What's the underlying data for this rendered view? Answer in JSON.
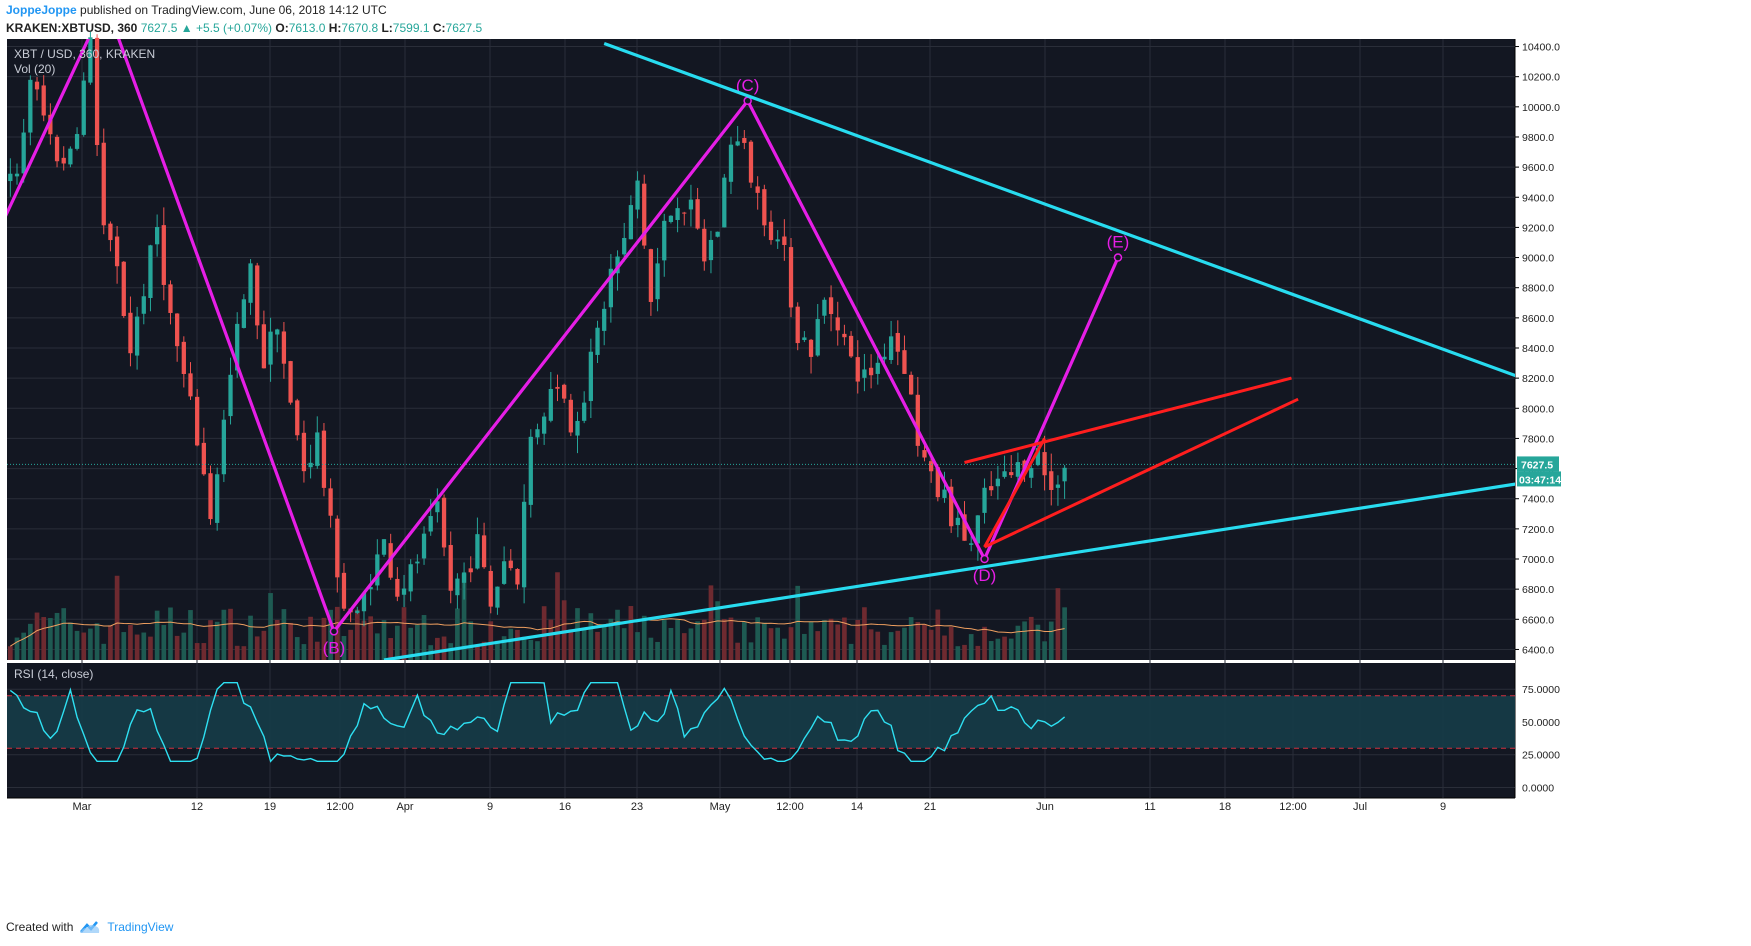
{
  "header": {
    "author": "JoppeJoppe",
    "published": "published on TradingView.com, June 06, 2018 14:12 UTC",
    "symbol": "KRAKEN:XBTUSD, 360",
    "last": "7627.5",
    "change": "▲ +5.5 (+0.07%)",
    "o_label": "O:",
    "o": "7613.0",
    "h_label": "H:",
    "h": "7670.8",
    "l_label": "L:",
    "l": "7599.1",
    "c_label": "C:",
    "c": "7627.5"
  },
  "footer": {
    "created_with": "Created with",
    "brand": "TradingView",
    "logo_icon": "tradingview-cloud-icon"
  },
  "colors": {
    "background": "#131722",
    "grid": "#2a2e39",
    "up": "#26a69a",
    "down": "#ef5350",
    "magenta": "#e61ee6",
    "cyan": "#28dcf0",
    "red": "#ff1e1e",
    "rsi": "#2ee0f2",
    "vol_ma": "#f0a060"
  },
  "chart_data": [
    {
      "type": "candlestick",
      "title": "XBT / USD, 360, KRAKEN",
      "volume_label": "Vol (20)",
      "x_ticks": [
        "Mar",
        "12",
        "19",
        "12:00",
        "Apr",
        "9",
        "16",
        "23",
        "May",
        "12:00",
        "14",
        "21",
        "Jun",
        "11",
        "18",
        "12:00",
        "Jul",
        "9"
      ],
      "y_ticks": [
        6400,
        6600,
        6800,
        7000,
        7200,
        7400,
        7600,
        7800,
        8000,
        8200,
        8400,
        8600,
        8800,
        9000,
        9200,
        9400,
        9600,
        9800,
        10000,
        10200,
        10400
      ],
      "y_tick_labels": [
        "6400.0",
        "6600.0",
        "6800.0",
        "7000.0",
        "7200.0",
        "7400.0",
        "7600.0",
        "7800.0",
        "8000.0",
        "8200.0",
        "8400.0",
        "8600.0",
        "8800.0",
        "9000.0",
        "9200.0",
        "9400.0",
        "9600.0",
        "9800.0",
        "10000.0",
        "10200.0",
        "10400.0"
      ],
      "ylim": [
        6330,
        10450
      ],
      "last_price": 7627.5,
      "last_price_label": "7627.5",
      "countdown_label": "03:47:14",
      "close_path": [
        [
          1,
          9500
        ],
        [
          3,
          10200
        ],
        [
          6,
          9800
        ],
        [
          8,
          9600
        ],
        [
          10,
          9900
        ],
        [
          12,
          10400
        ],
        [
          14,
          9200
        ],
        [
          16,
          8900
        ],
        [
          18,
          8400
        ],
        [
          20,
          8800
        ],
        [
          22,
          9200
        ],
        [
          24,
          8600
        ],
        [
          26,
          8200
        ],
        [
          28,
          7800
        ],
        [
          30,
          7300
        ],
        [
          32,
          7900
        ],
        [
          34,
          8500
        ],
        [
          36,
          8900
        ],
        [
          38,
          8300
        ],
        [
          40,
          8600
        ],
        [
          42,
          8000
        ],
        [
          44,
          7600
        ],
        [
          46,
          7800
        ],
        [
          48,
          7200
        ],
        [
          50,
          6700
        ],
        [
          52,
          6600
        ],
        [
          54,
          6900
        ],
        [
          56,
          7100
        ],
        [
          58,
          6800
        ],
        [
          60,
          6900
        ],
        [
          62,
          7100
        ],
        [
          64,
          7300
        ],
        [
          66,
          6800
        ],
        [
          68,
          6900
        ],
        [
          70,
          7100
        ],
        [
          72,
          6700
        ],
        [
          74,
          7000
        ],
        [
          76,
          6900
        ],
        [
          78,
          7800
        ],
        [
          80,
          8000
        ],
        [
          82,
          8200
        ],
        [
          84,
          7900
        ],
        [
          86,
          8100
        ],
        [
          88,
          8500
        ],
        [
          90,
          8900
        ],
        [
          92,
          9100
        ],
        [
          94,
          9500
        ],
        [
          96,
          8700
        ],
        [
          98,
          9200
        ],
        [
          100,
          9400
        ],
        [
          102,
          9300
        ],
        [
          104,
          9000
        ],
        [
          106,
          9200
        ],
        [
          108,
          9800
        ],
        [
          110,
          9700
        ],
        [
          112,
          9400
        ],
        [
          114,
          9200
        ],
        [
          116,
          9000
        ],
        [
          118,
          8500
        ],
        [
          120,
          8400
        ],
        [
          122,
          8700
        ],
        [
          124,
          8600
        ],
        [
          126,
          8300
        ],
        [
          128,
          8200
        ],
        [
          130,
          8300
        ],
        [
          132,
          8500
        ],
        [
          134,
          8300
        ],
        [
          136,
          7800
        ],
        [
          138,
          7500
        ],
        [
          140,
          7400
        ],
        [
          142,
          7200
        ],
        [
          144,
          7100
        ],
        [
          146,
          7400
        ],
        [
          148,
          7500
        ],
        [
          150,
          7550
        ],
        [
          152,
          7650
        ],
        [
          154,
          7700
        ],
        [
          156,
          7450
        ],
        [
          158,
          7650
        ]
      ],
      "annotations": [
        {
          "type": "wave",
          "color": "magenta",
          "points": [
            [
              -1,
              9250
            ],
            [
              12,
              10480
            ]
          ]
        },
        {
          "type": "wave",
          "color": "magenta",
          "points": [
            [
              16,
              10480
            ],
            [
              48.5,
              6520
            ],
            [
              110.5,
              10040
            ],
            [
              146,
              7000
            ],
            [
              166,
              9000
            ]
          ]
        },
        {
          "type": "label",
          "text": "(B)",
          "x": 48.5,
          "y": 6520,
          "pos": "below"
        },
        {
          "type": "label",
          "text": "(C)",
          "x": 110.5,
          "y": 10040,
          "pos": "above"
        },
        {
          "type": "label",
          "text": "(D)",
          "x": 146,
          "y": 7000,
          "pos": "below"
        },
        {
          "type": "label",
          "text": "(E)",
          "x": 166,
          "y": 9000,
          "pos": "above"
        },
        {
          "type": "trendline",
          "color": "cyan",
          "points": [
            [
              89,
              10420
            ],
            [
              226,
              8210
            ]
          ]
        },
        {
          "type": "trendline",
          "color": "cyan",
          "points": [
            [
              56,
              6330
            ],
            [
              226,
              7500
            ]
          ]
        },
        {
          "type": "trendline",
          "color": "red",
          "points": [
            [
              143,
              7640
            ],
            [
              192,
              8200
            ]
          ]
        },
        {
          "type": "trendline",
          "color": "red",
          "points": [
            [
              146,
              7080
            ],
            [
              193,
              8060
            ]
          ]
        },
        {
          "type": "trendline",
          "color": "red",
          "points": [
            [
              146,
              7080
            ],
            [
              155,
              7800
            ]
          ]
        }
      ]
    },
    {
      "type": "line",
      "title": "RSI (14, close)",
      "y_ticks": [
        0,
        25,
        50,
        75
      ],
      "y_tick_labels": [
        "0.0000",
        "25.0000",
        "50.0000",
        "75.0000"
      ],
      "ylim": [
        -8,
        95
      ],
      "band": [
        30,
        70
      ]
    }
  ]
}
